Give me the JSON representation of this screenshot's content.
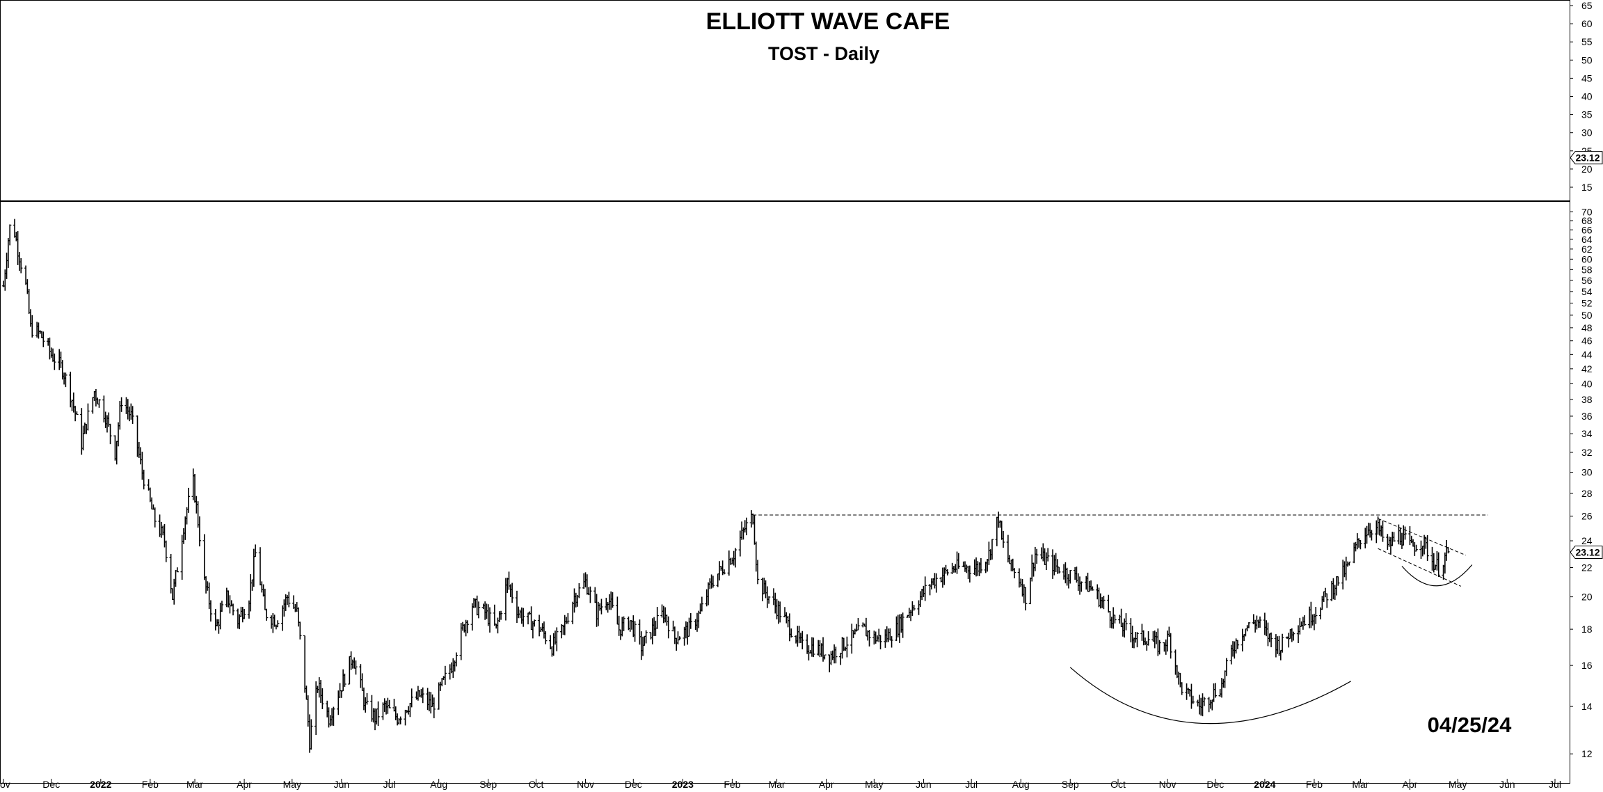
{
  "chart_data": {
    "type": "candlestick-ohlc",
    "title": "ELLIOTT WAVE CAFE",
    "subtitle": "TOST - Daily",
    "date_stamp": "04/25/24",
    "last_price_label": "23.12",
    "top_panel": {
      "y_ticks": [
        "65",
        "60",
        "55",
        "50",
        "45",
        "40",
        "35",
        "30",
        "25",
        "20",
        "15"
      ],
      "y_tick_values": [
        65,
        60,
        55,
        50,
        45,
        40,
        35,
        30,
        25,
        20,
        15
      ],
      "last_price": 23.12
    },
    "main_panel": {
      "y_scale": "log",
      "ylim": [
        11.5,
        71
      ],
      "y_ticks": [
        "70",
        "68",
        "66",
        "64",
        "62",
        "60",
        "58",
        "56",
        "54",
        "52",
        "50",
        "48",
        "46",
        "44",
        "42",
        "40",
        "38",
        "36",
        "34",
        "32",
        "30",
        "28",
        "26",
        "24",
        "22",
        "20",
        "18",
        "16",
        "14",
        "12"
      ],
      "y_tick_values": [
        70,
        68,
        66,
        64,
        62,
        60,
        58,
        56,
        54,
        52,
        50,
        48,
        46,
        44,
        42,
        40,
        38,
        36,
        34,
        32,
        30,
        28,
        26,
        24,
        22,
        20,
        18,
        16,
        14,
        12
      ],
      "last_price": 23.12
    },
    "x_ticks": [
      "ov",
      "Dec",
      "2022",
      "Feb",
      "Mar",
      "Apr",
      "May",
      "Jun",
      "Jul",
      "Aug",
      "Sep",
      "Oct",
      "Nov",
      "Dec",
      "2023",
      "Feb",
      "Mar",
      "Apr",
      "May",
      "Jun",
      "Jul",
      "Aug",
      "Sep",
      "Oct",
      "Nov",
      "Dec",
      "2024",
      "Feb",
      "Mar",
      "Apr",
      "May",
      "Jun",
      "Jul"
    ],
    "x_tick_dates": [
      "2021-11-01",
      "2021-12-01",
      "2022-01-01",
      "2022-02-01",
      "2022-03-01",
      "2022-04-01",
      "2022-05-01",
      "2022-06-01",
      "2022-07-01",
      "2022-08-01",
      "2022-09-01",
      "2022-10-01",
      "2022-11-01",
      "2022-12-01",
      "2023-01-01",
      "2023-02-01",
      "2023-03-01",
      "2023-04-01",
      "2023-05-01",
      "2023-06-01",
      "2023-07-01",
      "2023-08-01",
      "2023-09-01",
      "2023-10-01",
      "2023-11-01",
      "2023-12-01",
      "2024-01-01",
      "2024-02-01",
      "2024-03-01",
      "2024-04-01",
      "2024-05-01",
      "2024-06-01",
      "2024-07-01"
    ],
    "price_path": [
      [
        "2021-11-01",
        55
      ],
      [
        "2021-11-04",
        64
      ],
      [
        "2021-11-06",
        69
      ],
      [
        "2021-11-10",
        62
      ],
      [
        "2021-11-15",
        55
      ],
      [
        "2021-11-18",
        48
      ],
      [
        "2021-11-24",
        47
      ],
      [
        "2021-12-01",
        44
      ],
      [
        "2021-12-08",
        42
      ],
      [
        "2021-12-14",
        38
      ],
      [
        "2021-12-20",
        33
      ],
      [
        "2021-12-28",
        39
      ],
      [
        "2022-01-04",
        36
      ],
      [
        "2022-01-10",
        32
      ],
      [
        "2022-01-14",
        38
      ],
      [
        "2022-01-20",
        36
      ],
      [
        "2022-01-27",
        30
      ],
      [
        "2022-02-03",
        26
      ],
      [
        "2022-02-10",
        24
      ],
      [
        "2022-02-15",
        20
      ],
      [
        "2022-02-18",
        22
      ],
      [
        "2022-02-23",
        26
      ],
      [
        "2022-02-28",
        29
      ],
      [
        "2022-03-07",
        21
      ],
      [
        "2022-03-14",
        18
      ],
      [
        "2022-03-21",
        20
      ],
      [
        "2022-03-28",
        18.5
      ],
      [
        "2022-04-04",
        20
      ],
      [
        "2022-04-08",
        23
      ],
      [
        "2022-04-14",
        19
      ],
      [
        "2022-04-21",
        18.5
      ],
      [
        "2022-04-28",
        20
      ],
      [
        "2022-05-04",
        19
      ],
      [
        "2022-05-09",
        15
      ],
      [
        "2022-05-12",
        12.5
      ],
      [
        "2022-05-17",
        15
      ],
      [
        "2022-05-24",
        13.5
      ],
      [
        "2022-06-01",
        15
      ],
      [
        "2022-06-08",
        16.5
      ],
      [
        "2022-06-16",
        14
      ],
      [
        "2022-06-22",
        13.5
      ],
      [
        "2022-06-28",
        14
      ],
      [
        "2022-07-06",
        13.5
      ],
      [
        "2022-07-12",
        14
      ],
      [
        "2022-07-20",
        14.5
      ],
      [
        "2022-07-28",
        14
      ],
      [
        "2022-08-03",
        15
      ],
      [
        "2022-08-09",
        16
      ],
      [
        "2022-08-16",
        18
      ],
      [
        "2022-08-22",
        19.5
      ],
      [
        "2022-08-30",
        19
      ],
      [
        "2022-09-06",
        18
      ],
      [
        "2022-09-13",
        21
      ],
      [
        "2022-09-20",
        19
      ],
      [
        "2022-09-27",
        18.5
      ],
      [
        "2022-10-04",
        18
      ],
      [
        "2022-10-11",
        17
      ],
      [
        "2022-10-18",
        18
      ],
      [
        "2022-10-25",
        20
      ],
      [
        "2022-11-01",
        21
      ],
      [
        "2022-11-08",
        19
      ],
      [
        "2022-11-15",
        20
      ],
      [
        "2022-11-22",
        18
      ],
      [
        "2022-11-29",
        18.5
      ],
      [
        "2022-12-06",
        17
      ],
      [
        "2022-12-13",
        18
      ],
      [
        "2022-12-20",
        19
      ],
      [
        "2022-12-27",
        17.5
      ],
      [
        "2023-01-05",
        18
      ],
      [
        "2023-01-12",
        19
      ],
      [
        "2023-01-19",
        21
      ],
      [
        "2023-01-26",
        22
      ],
      [
        "2023-02-02",
        23
      ],
      [
        "2023-02-09",
        25
      ],
      [
        "2023-02-14",
        26
      ],
      [
        "2023-02-17",
        21
      ],
      [
        "2023-02-24",
        20
      ],
      [
        "2023-03-03",
        19
      ],
      [
        "2023-03-10",
        18
      ],
      [
        "2023-03-17",
        17
      ],
      [
        "2023-03-24",
        17
      ],
      [
        "2023-04-03",
        16.5
      ],
      [
        "2023-04-10",
        17
      ],
      [
        "2023-04-17",
        17.5
      ],
      [
        "2023-04-24",
        18
      ],
      [
        "2023-05-01",
        17.5
      ],
      [
        "2023-05-08",
        17.5
      ],
      [
        "2023-05-15",
        18
      ],
      [
        "2023-05-22",
        19
      ],
      [
        "2023-05-30",
        20
      ],
      [
        "2023-06-06",
        21
      ],
      [
        "2023-06-13",
        21.5
      ],
      [
        "2023-06-20",
        22
      ],
      [
        "2023-06-27",
        22
      ],
      [
        "2023-07-05",
        22
      ],
      [
        "2023-07-12",
        23
      ],
      [
        "2023-07-18",
        26
      ],
      [
        "2023-07-20",
        24
      ],
      [
        "2023-07-26",
        22
      ],
      [
        "2023-08-01",
        21
      ],
      [
        "2023-08-04",
        20
      ],
      [
        "2023-08-10",
        23
      ],
      [
        "2023-08-17",
        22.5
      ],
      [
        "2023-08-24",
        22
      ],
      [
        "2023-09-01",
        21.5
      ],
      [
        "2023-09-08",
        21
      ],
      [
        "2023-09-15",
        20.5
      ],
      [
        "2023-09-22",
        19.5
      ],
      [
        "2023-09-29",
        18.5
      ],
      [
        "2023-10-06",
        18
      ],
      [
        "2023-10-13",
        17.5
      ],
      [
        "2023-10-20",
        17.5
      ],
      [
        "2023-10-27",
        17
      ],
      [
        "2023-11-02",
        17.5
      ],
      [
        "2023-11-09",
        15
      ],
      [
        "2023-11-14",
        14.5
      ],
      [
        "2023-11-21",
        14
      ],
      [
        "2023-11-28",
        14.5
      ],
      [
        "2023-12-05",
        15
      ],
      [
        "2023-12-12",
        17
      ],
      [
        "2023-12-19",
        18
      ],
      [
        "2023-12-27",
        18.5
      ],
      [
        "2024-01-04",
        17.5
      ],
      [
        "2024-01-11",
        17
      ],
      [
        "2024-01-18",
        18
      ],
      [
        "2024-01-25",
        18.5
      ],
      [
        "2024-02-01",
        19
      ],
      [
        "2024-02-08",
        20
      ],
      [
        "2024-02-15",
        21
      ],
      [
        "2024-02-22",
        22
      ],
      [
        "2024-02-29",
        24
      ],
      [
        "2024-03-06",
        25
      ],
      [
        "2024-03-12",
        25
      ],
      [
        "2024-03-18",
        23.5
      ],
      [
        "2024-03-25",
        24.5
      ],
      [
        "2024-04-02",
        23.5
      ],
      [
        "2024-04-09",
        24
      ],
      [
        "2024-04-15",
        22.5
      ],
      [
        "2024-04-19",
        22
      ],
      [
        "2024-04-25",
        23.1
      ]
    ],
    "annotations": {
      "resistance_level": 26.1,
      "resistance_start": "2023-02-14",
      "resistance_end": "2024-05-20"
    }
  }
}
